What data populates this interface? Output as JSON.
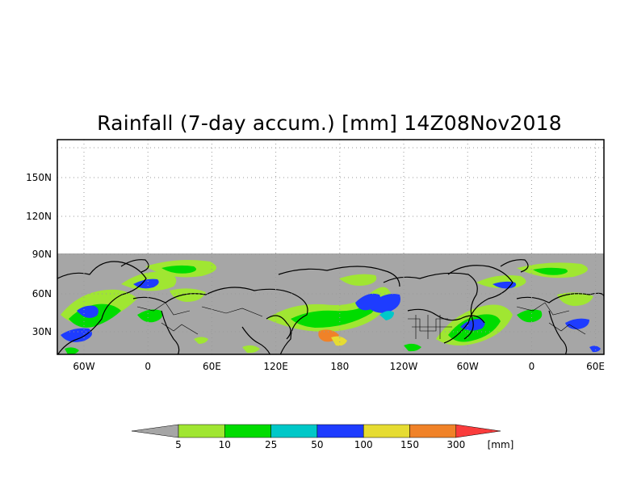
{
  "title": "Rainfall (7-day accum.) [mm] 14Z08Nov2018",
  "map": {
    "x_ticks": [
      "60W",
      "0",
      "60E",
      "120E",
      "180",
      "120W",
      "60W",
      "0",
      "60E"
    ],
    "y_ticks": [
      "150N",
      "120N",
      "90N",
      "60N",
      "30N"
    ],
    "missing_color": "#a6a6a6",
    "grid": true
  },
  "colorbar": {
    "thresholds": [
      "5",
      "10",
      "25",
      "50",
      "100",
      "150",
      "300"
    ],
    "unit": "[mm]",
    "colors": [
      "#a6a6a6",
      "#a0e632",
      "#00dc00",
      "#00c8c8",
      "#1e3cff",
      "#e6dc32",
      "#f08228",
      "#fa3c3c"
    ]
  }
}
